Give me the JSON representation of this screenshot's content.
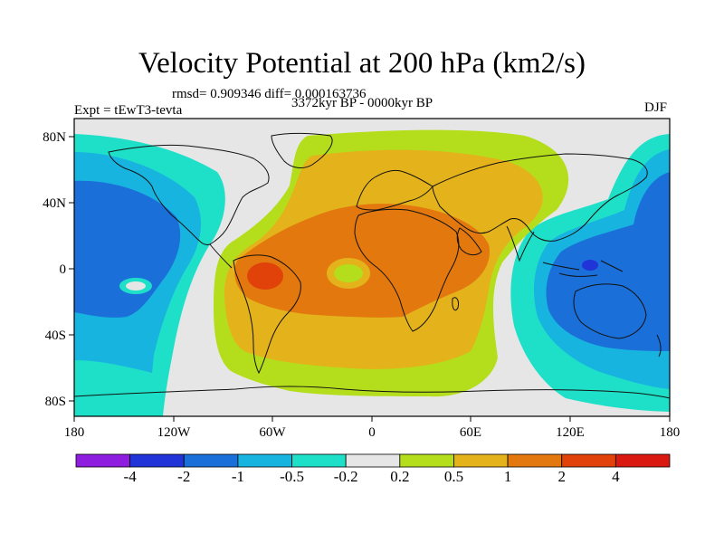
{
  "chart_data": {
    "type": "contour-map",
    "title": "Velocity Potential at 200 hPa (km2/s)",
    "stats": "rmsd= 0.909346 diff= 0.000163736",
    "experiment": "Expt = tEwT3-tevta",
    "period": "3372kyr BP - 0000kyr BP",
    "season": "DJF",
    "x_ticks": [
      "180",
      "120W",
      "60W",
      "0",
      "60E",
      "120E",
      "180"
    ],
    "y_ticks": [
      "80N",
      "40N",
      "0",
      "40S",
      "80S"
    ],
    "xlim": [
      -180,
      180
    ],
    "ylim": [
      -90,
      90
    ],
    "levels": [
      "-4",
      "-2",
      "-1",
      "-0.5",
      "-0.2",
      "0.2",
      "0.5",
      "1",
      "2",
      "4"
    ],
    "colors": [
      "#8f1de0",
      "#2034d8",
      "#1a70d8",
      "#18b4e0",
      "#1ee0c8",
      "#e6e6e6",
      "#b4de1c",
      "#e4b21a",
      "#e2780e",
      "#e0420a",
      "#da1a10"
    ],
    "features": {
      "positive_center": "tropical South America / Atlantic (max ~2 to 4)",
      "negative_center": "Maritime Continent / western Pacific (min ~ -2)"
    }
  }
}
